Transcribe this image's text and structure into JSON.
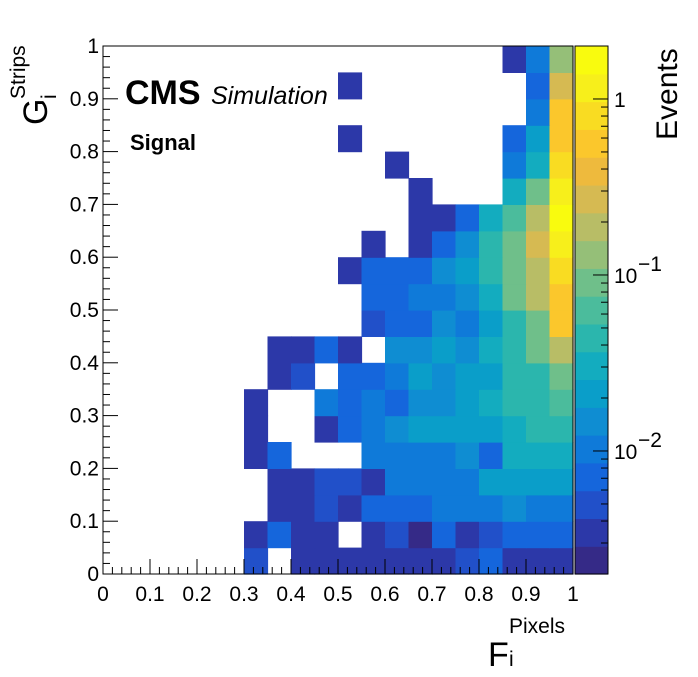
{
  "chart_data": {
    "type": "heatmap",
    "x": {
      "title": "F",
      "title_sub": "i",
      "title_sup": "Pixels",
      "range": [
        0,
        1
      ],
      "tick_labels": [
        "0",
        "0.1",
        "0.2",
        "0.3",
        "0.4",
        "0.5",
        "0.6",
        "0.7",
        "0.8",
        "0.9",
        "1"
      ]
    },
    "y": {
      "title": "G",
      "title_sub": "i",
      "title_sup": "Strips",
      "range": [
        0,
        1
      ],
      "tick_labels": [
        "0",
        "0.1",
        "0.2",
        "0.3",
        "0.4",
        "0.5",
        "0.6",
        "0.7",
        "0.8",
        "0.9",
        "1"
      ]
    },
    "z": {
      "title": "Events",
      "scale": "log",
      "range": [
        0.002,
        2
      ],
      "tick_labels": [
        {
          "base": "1",
          "exp": "",
          "value": 1
        },
        {
          "base": "10",
          "exp": "−1",
          "value": 0.1
        },
        {
          "base": "10",
          "exp": "−2",
          "value": 0.01
        }
      ]
    },
    "bins": {
      "nx": 20,
      "ny": 20
    },
    "grid": false,
    "annotations": {
      "experiment": "CMS",
      "label": "Simulation",
      "sample": "Signal"
    },
    "palette": [
      "#352a87",
      "#2c38a8",
      "#2150c9",
      "#1566dc",
      "#0f7ad9",
      "#0f8dd2",
      "#0a9ec9",
      "#13acbf",
      "#2bb6ad",
      "#4bbc9c",
      "#6fbf8a",
      "#95bf78",
      "#b8bd66",
      "#d6ba52",
      "#eeba3d",
      "#fbc72c",
      "#f9dc22",
      "#f7ef1b",
      "#f9fb0e"
    ],
    "cells": [
      [
        6,
        0,
        0.0045
      ],
      [
        8,
        0,
        0.003
      ],
      [
        9,
        0,
        0.003
      ],
      [
        10,
        0,
        0.004
      ],
      [
        11,
        0,
        0.004
      ],
      [
        12,
        0,
        0.004
      ],
      [
        13,
        0,
        0.004
      ],
      [
        14,
        0,
        0.004
      ],
      [
        15,
        0,
        0.005
      ],
      [
        16,
        0,
        0.006
      ],
      [
        17,
        0,
        0.004
      ],
      [
        18,
        0,
        0.0035
      ],
      [
        19,
        0,
        0.0035
      ],
      [
        6,
        1,
        0.0038
      ],
      [
        7,
        1,
        0.006
      ],
      [
        8,
        1,
        0.0038
      ],
      [
        9,
        1,
        0.0038
      ],
      [
        11,
        1,
        0.0038
      ],
      [
        12,
        1,
        0.0045
      ],
      [
        13,
        1,
        0.0025
      ],
      [
        14,
        1,
        0.006
      ],
      [
        15,
        1,
        0.0035
      ],
      [
        16,
        1,
        0.005
      ],
      [
        17,
        1,
        0.006
      ],
      [
        18,
        1,
        0.006
      ],
      [
        19,
        1,
        0.006
      ],
      [
        7,
        2,
        0.0038
      ],
      [
        8,
        2,
        0.0038
      ],
      [
        9,
        2,
        0.005
      ],
      [
        10,
        2,
        0.0038
      ],
      [
        11,
        2,
        0.006
      ],
      [
        12,
        2,
        0.008
      ],
      [
        13,
        2,
        0.008
      ],
      [
        14,
        2,
        0.01
      ],
      [
        15,
        2,
        0.01
      ],
      [
        16,
        2,
        0.012
      ],
      [
        17,
        2,
        0.015
      ],
      [
        18,
        2,
        0.012
      ],
      [
        19,
        2,
        0.012
      ],
      [
        7,
        3,
        0.0038
      ],
      [
        8,
        3,
        0.0038
      ],
      [
        9,
        3,
        0.0045
      ],
      [
        10,
        3,
        0.0045
      ],
      [
        11,
        3,
        0.004
      ],
      [
        12,
        3,
        0.01
      ],
      [
        13,
        3,
        0.012
      ],
      [
        14,
        3,
        0.012
      ],
      [
        15,
        3,
        0.012
      ],
      [
        16,
        3,
        0.02
      ],
      [
        17,
        3,
        0.025
      ],
      [
        18,
        3,
        0.025
      ],
      [
        19,
        3,
        0.025
      ],
      [
        6,
        4,
        0.0038
      ],
      [
        7,
        4,
        0.007
      ],
      [
        11,
        4,
        0.01
      ],
      [
        12,
        4,
        0.01
      ],
      [
        13,
        4,
        0.01
      ],
      [
        14,
        4,
        0.01
      ],
      [
        15,
        4,
        0.015
      ],
      [
        16,
        4,
        0.008
      ],
      [
        17,
        4,
        0.03
      ],
      [
        18,
        4,
        0.03
      ],
      [
        19,
        4,
        0.03
      ],
      [
        6,
        5,
        0.0038
      ],
      [
        9,
        5,
        0.004
      ],
      [
        10,
        5,
        0.008
      ],
      [
        11,
        5,
        0.01
      ],
      [
        12,
        5,
        0.015
      ],
      [
        13,
        5,
        0.02
      ],
      [
        14,
        5,
        0.02
      ],
      [
        15,
        5,
        0.02
      ],
      [
        16,
        5,
        0.025
      ],
      [
        17,
        5,
        0.03
      ],
      [
        18,
        5,
        0.04
      ],
      [
        19,
        5,
        0.05
      ],
      [
        6,
        6,
        0.0038
      ],
      [
        9,
        6,
        0.01
      ],
      [
        10,
        6,
        0.006
      ],
      [
        11,
        6,
        0.01
      ],
      [
        12,
        6,
        0.008
      ],
      [
        13,
        6,
        0.015
      ],
      [
        14,
        6,
        0.015
      ],
      [
        15,
        6,
        0.02
      ],
      [
        16,
        6,
        0.03
      ],
      [
        17,
        6,
        0.04
      ],
      [
        18,
        6,
        0.05
      ],
      [
        19,
        6,
        0.06
      ],
      [
        7,
        7,
        0.0038
      ],
      [
        8,
        7,
        0.005
      ],
      [
        10,
        7,
        0.006
      ],
      [
        11,
        7,
        0.006
      ],
      [
        12,
        7,
        0.01
      ],
      [
        13,
        7,
        0.02
      ],
      [
        14,
        7,
        0.015
      ],
      [
        15,
        7,
        0.02
      ],
      [
        16,
        7,
        0.025
      ],
      [
        17,
        7,
        0.04
      ],
      [
        18,
        7,
        0.05
      ],
      [
        19,
        7,
        0.1
      ],
      [
        7,
        8,
        0.0038
      ],
      [
        8,
        8,
        0.0038
      ],
      [
        9,
        8,
        0.007
      ],
      [
        10,
        8,
        0.004
      ],
      [
        12,
        8,
        0.015
      ],
      [
        13,
        8,
        0.015
      ],
      [
        14,
        8,
        0.02
      ],
      [
        15,
        8,
        0.015
      ],
      [
        16,
        8,
        0.03
      ],
      [
        17,
        8,
        0.05
      ],
      [
        18,
        8,
        0.1
      ],
      [
        19,
        8,
        0.2
      ],
      [
        11,
        9,
        0.005
      ],
      [
        12,
        9,
        0.006
      ],
      [
        13,
        9,
        0.008
      ],
      [
        14,
        9,
        0.015
      ],
      [
        15,
        9,
        0.01
      ],
      [
        16,
        9,
        0.025
      ],
      [
        17,
        9,
        0.05
      ],
      [
        18,
        9,
        0.1
      ],
      [
        19,
        9,
        0.5
      ],
      [
        11,
        10,
        0.006
      ],
      [
        12,
        10,
        0.008
      ],
      [
        13,
        10,
        0.01
      ],
      [
        14,
        10,
        0.012
      ],
      [
        15,
        10,
        0.015
      ],
      [
        16,
        10,
        0.03
      ],
      [
        17,
        10,
        0.08
      ],
      [
        18,
        10,
        0.2
      ],
      [
        19,
        10,
        0.5
      ],
      [
        10,
        11,
        0.004
      ],
      [
        11,
        11,
        0.006
      ],
      [
        12,
        11,
        0.006
      ],
      [
        13,
        11,
        0.008
      ],
      [
        14,
        11,
        0.015
      ],
      [
        15,
        11,
        0.02
      ],
      [
        16,
        11,
        0.04
      ],
      [
        17,
        11,
        0.1
      ],
      [
        18,
        11,
        0.2
      ],
      [
        19,
        11,
        0.8
      ],
      [
        11,
        12,
        0.004
      ],
      [
        13,
        12,
        0.004
      ],
      [
        14,
        12,
        0.006
      ],
      [
        15,
        12,
        0.015
      ],
      [
        16,
        12,
        0.04
      ],
      [
        17,
        12,
        0.1
      ],
      [
        18,
        12,
        0.3
      ],
      [
        19,
        12,
        1.2
      ],
      [
        13,
        13,
        0.003
      ],
      [
        14,
        13,
        0.003
      ],
      [
        15,
        13,
        0.006
      ],
      [
        16,
        13,
        0.03
      ],
      [
        17,
        13,
        0.06
      ],
      [
        18,
        13,
        0.2
      ],
      [
        19,
        13,
        1.5
      ],
      [
        13,
        14,
        0.004
      ],
      [
        17,
        14,
        0.03
      ],
      [
        18,
        14,
        0.08
      ],
      [
        19,
        14,
        1.0
      ],
      [
        12,
        15,
        0.004
      ],
      [
        17,
        15,
        0.01
      ],
      [
        18,
        15,
        0.03
      ],
      [
        19,
        15,
        0.8
      ],
      [
        10,
        16,
        0.004
      ],
      [
        17,
        16,
        0.006
      ],
      [
        18,
        16,
        0.025
      ],
      [
        19,
        16,
        0.5
      ],
      [
        18,
        17,
        0.012
      ],
      [
        19,
        17,
        0.6
      ],
      [
        10,
        18,
        0.004
      ],
      [
        18,
        18,
        0.008
      ],
      [
        19,
        18,
        0.3
      ],
      [
        17,
        19,
        0.003
      ],
      [
        18,
        19,
        0.01
      ],
      [
        19,
        19,
        0.15
      ]
    ]
  }
}
